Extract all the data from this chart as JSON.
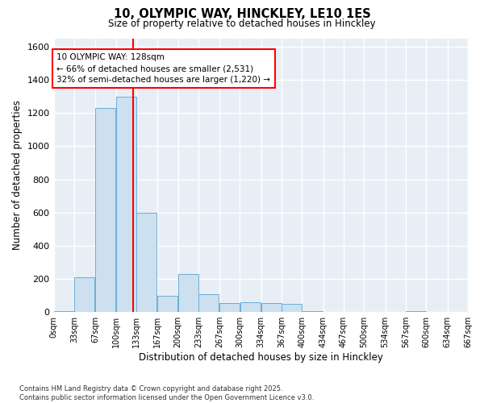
{
  "title_line1": "10, OLYMPIC WAY, HINCKLEY, LE10 1ES",
  "title_line2": "Size of property relative to detached houses in Hinckley",
  "xlabel": "Distribution of detached houses by size in Hinckley",
  "ylabel": "Number of detached properties",
  "bar_color": "#cce0f0",
  "bar_edge_color": "#6aaed6",
  "background_color": "#e8eef5",
  "grid_color": "#ffffff",
  "vline_x": 128,
  "vline_color": "red",
  "annotation_text": "10 OLYMPIC WAY: 128sqm\n← 66% of detached houses are smaller (2,531)\n32% of semi-detached houses are larger (1,220) →",
  "annotation_box_color": "red",
  "bins": [
    0,
    33,
    67,
    100,
    133,
    167,
    200,
    233,
    267,
    300,
    334,
    367,
    400,
    434,
    467,
    500,
    534,
    567,
    600,
    634,
    667
  ],
  "bar_heights": [
    5,
    210,
    1230,
    1300,
    600,
    100,
    230,
    110,
    55,
    60,
    55,
    50,
    5,
    0,
    0,
    0,
    0,
    5,
    0,
    0
  ],
  "ylim": [
    0,
    1650
  ],
  "yticks": [
    0,
    200,
    400,
    600,
    800,
    1000,
    1200,
    1400,
    1600
  ],
  "footnote": "Contains HM Land Registry data © Crown copyright and database right 2025.\nContains public sector information licensed under the Open Government Licence v3.0."
}
